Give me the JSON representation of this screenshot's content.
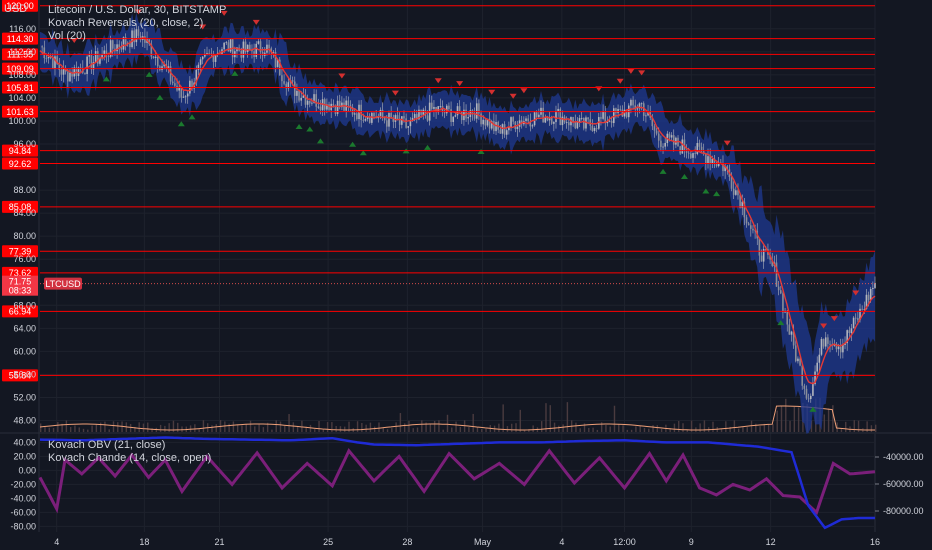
{
  "header": {
    "currency": "USD",
    "title": "Litecoin / U.S. Dollar, 30, BITSTAMP",
    "indicator_reversals": "Kovach Reversals (20, close, 2)",
    "indicator_vol": "Vol (20)"
  },
  "lower_pane": {
    "indicator_obv": "Kovach OBV (21, close)",
    "indicator_chande": "Kovach Chande (14, close, open)"
  },
  "colors": {
    "background": "#131722",
    "level_line": "#ff0000",
    "candle_up": "#b2b5be",
    "channel": "#1f3a93",
    "ma": "#e53935",
    "triangle_up": "#1b7a2e",
    "triangle_down": "#d32f2f",
    "obv": "#1f2bd6",
    "chande": "#7b1f7a",
    "volume_avg": "#f0a078"
  },
  "chart_data": [
    {
      "type": "line",
      "title": "Litecoin / U.S. Dollar, 30, BITSTAMP",
      "ylabel": "USD",
      "ylim": [
        46,
        121
      ],
      "price_ticks": [
        "116.00",
        "112.00",
        "108.00",
        "104.00",
        "100.00",
        "96.00",
        "88.00",
        "84.00",
        "80.00",
        "76.00",
        "68.00",
        "64.00",
        "60.00",
        "56.00",
        "52.00",
        "48.00"
      ],
      "horizontal_levels": [
        "120.00",
        "114.30",
        "111.55",
        "109.09",
        "105.81",
        "101.63",
        "94.84",
        "92.62",
        "85.08",
        "77.39",
        "73.62",
        "66.94",
        "55.84"
      ],
      "current_price": {
        "symbol": "LTCUSD",
        "price": "71.75",
        "countdown": "08:33"
      },
      "x_tick_labels": [
        "4",
        "18",
        "21",
        "25",
        "28",
        "May",
        "4",
        "12:00",
        "9",
        "12",
        "16"
      ],
      "series": [
        {
          "x": [
            0,
            3,
            6,
            9,
            12,
            15,
            17,
            20,
            22,
            25,
            27,
            30,
            32,
            35,
            37,
            40,
            42,
            44,
            47,
            50,
            52,
            55,
            57,
            60,
            62,
            65,
            67,
            69,
            72,
            74,
            76,
            78,
            80,
            82,
            84,
            86,
            88,
            90,
            92,
            94,
            96,
            98,
            100
          ],
          "values": [
            113,
            108,
            110,
            113,
            115,
            109,
            104,
            111,
            113,
            112,
            113,
            106,
            104,
            103,
            102,
            101,
            100,
            99,
            102,
            101,
            102,
            98,
            100,
            101,
            101,
            99,
            100,
            101,
            103,
            97,
            96,
            95,
            94,
            92,
            86,
            78,
            74,
            62,
            52,
            63,
            61,
            66,
            72
          ]
        }
      ]
    },
    {
      "type": "line",
      "ylim": [
        -88,
        52
      ],
      "left_ticks": [
        "40.00",
        "20.00",
        "0.00",
        "-20.00",
        "-40.00",
        "-60.00",
        "-80.00"
      ],
      "right_ticks": [
        "-40000.00",
        "-60000.00",
        "-80000.00"
      ],
      "series": [
        {
          "name": "Kovach OBV (21, close)",
          "x": [
            0,
            5,
            10,
            15,
            20,
            25,
            30,
            35,
            38,
            40,
            45,
            50,
            55,
            60,
            65,
            70,
            75,
            80,
            84,
            86,
            88,
            89,
            90,
            92,
            94,
            96,
            98,
            100
          ],
          "values": [
            44,
            43,
            45,
            47,
            45,
            44,
            43,
            46,
            40,
            37,
            36,
            38,
            40,
            40,
            42,
            43,
            40,
            40,
            36,
            34,
            30,
            28,
            26,
            -50,
            -82,
            -70,
            -68,
            -68
          ]
        },
        {
          "name": "Kovach Chande (14, close, open)",
          "x": [
            0,
            2,
            3,
            5,
            7,
            9,
            11,
            13,
            15,
            17,
            20,
            23,
            26,
            29,
            32,
            35,
            37,
            40,
            43,
            46,
            49,
            52,
            55,
            58,
            61,
            64,
            67,
            70,
            73,
            75,
            77,
            79,
            81,
            83,
            85,
            87,
            89,
            91,
            93,
            95,
            97,
            100
          ],
          "values": [
            -10,
            -55,
            15,
            -5,
            18,
            -8,
            22,
            -10,
            15,
            -30,
            20,
            -20,
            25,
            -25,
            10,
            -22,
            28,
            -15,
            20,
            -30,
            24,
            -12,
            10,
            -20,
            28,
            -18,
            18,
            -25,
            24,
            -15,
            22,
            -25,
            -35,
            -20,
            -28,
            -12,
            -36,
            -38,
            -60,
            10,
            -5,
            -2
          ]
        }
      ]
    }
  ]
}
